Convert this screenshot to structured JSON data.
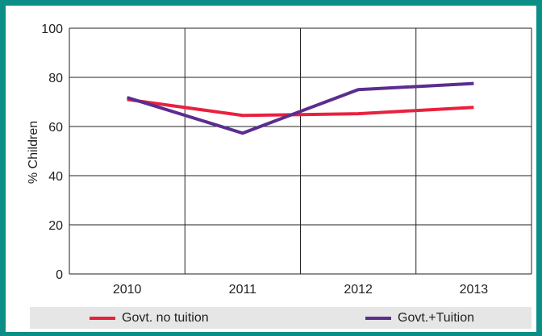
{
  "chart_data": {
    "type": "line",
    "title": "",
    "xlabel": "",
    "ylabel": "% Children",
    "categories": [
      "2010",
      "2011",
      "2012",
      "2013"
    ],
    "ylim": [
      0,
      100
    ],
    "yticks": [
      0,
      20,
      40,
      60,
      80,
      100
    ],
    "grid": true,
    "legend_position": "bottom",
    "series": [
      {
        "name": "Govt. no tuition",
        "values": [
          71,
          64.5,
          65.2,
          67.8
        ],
        "color": "#e8213f"
      },
      {
        "name": "Govt.+Tuition",
        "values": [
          71.8,
          57.3,
          75,
          77.5
        ],
        "color": "#5b2d8e"
      }
    ]
  }
}
